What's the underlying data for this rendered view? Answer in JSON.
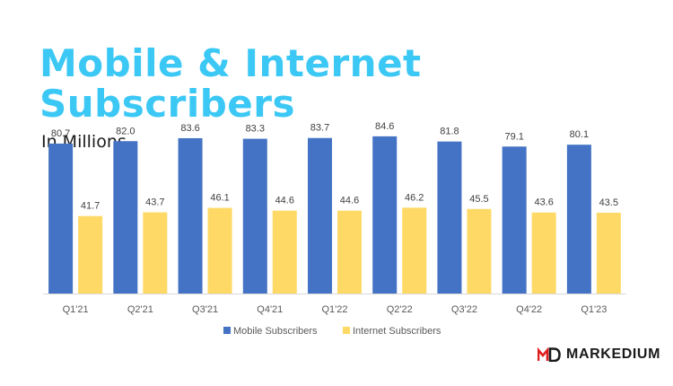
{
  "header": {
    "title_line1": "Mobile & Internet",
    "title_line2": "Subscribers",
    "subtitle": "In Millions"
  },
  "brand": {
    "name": "MARKEDIUM",
    "logo": "md-logo-mark",
    "color": "#e02020"
  },
  "chart_data": {
    "type": "bar",
    "categories": [
      "Q1'21",
      "Q2'21",
      "Q3'21",
      "Q4'21",
      "Q1'22",
      "Q2'22",
      "Q3'22",
      "Q4'22",
      "Q1'23"
    ],
    "series": [
      {
        "name": "Mobile Subscribers",
        "color": "#4472c4",
        "values": [
          80.7,
          82.0,
          83.6,
          83.3,
          83.7,
          84.6,
          81.8,
          79.1,
          80.1
        ],
        "labels": [
          "80.7",
          "82.0",
          "83.6",
          "83.3",
          "83.7",
          "84.6",
          "81.8",
          "79.1",
          "80.1"
        ]
      },
      {
        "name": "Internet Subscribers",
        "color": "#ffd966",
        "values": [
          41.7,
          43.7,
          46.1,
          44.6,
          44.6,
          46.2,
          45.5,
          43.6,
          43.5
        ],
        "labels": [
          "41.7",
          "43.7",
          "46.1",
          "44.6",
          "44.6",
          "46.2",
          "45.5",
          "43.6",
          "43.5"
        ]
      }
    ],
    "title": "Mobile & Internet Subscribers",
    "ylabel": "In Millions",
    "ylim": [
      0,
      100
    ],
    "grid": false,
    "legend": "bottom"
  }
}
